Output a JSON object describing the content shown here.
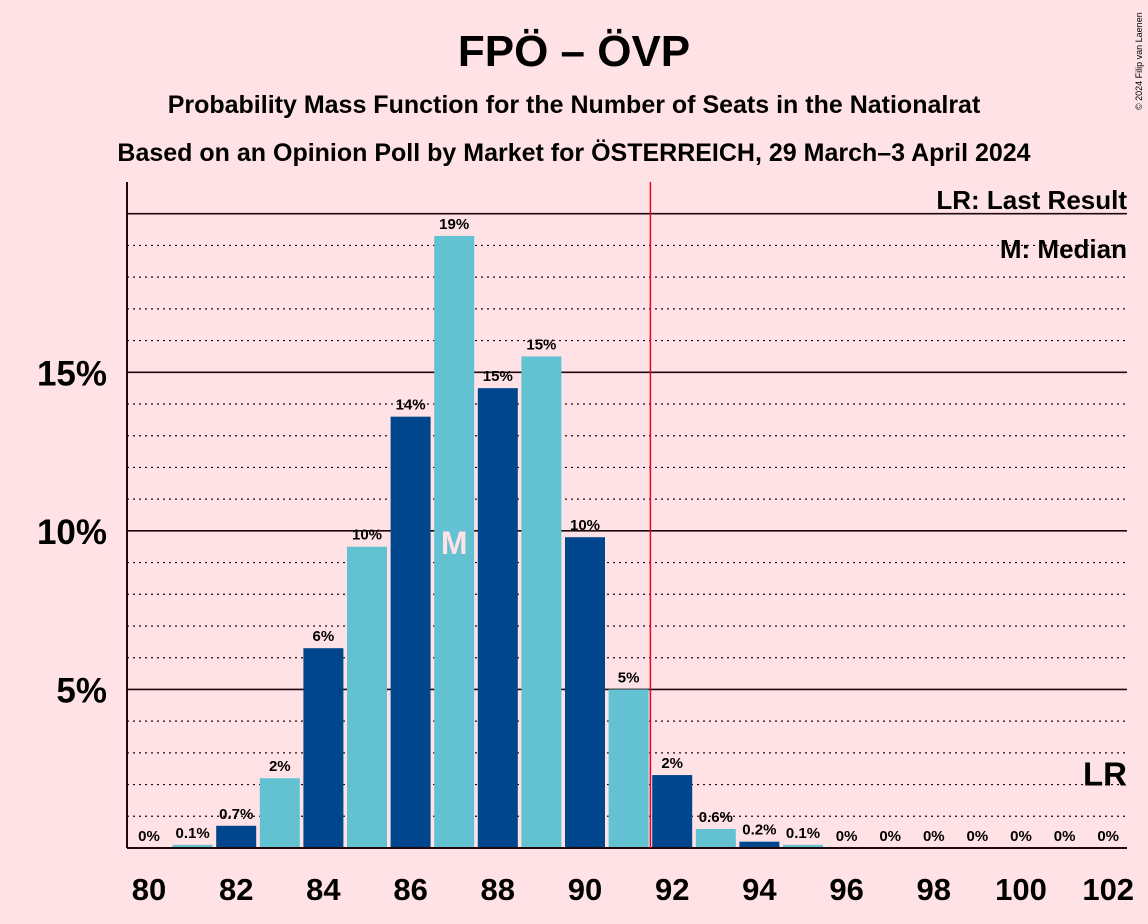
{
  "title": "FPÖ – ÖVP",
  "subtitle1": "Probability Mass Function for the Number of Seats in the Nationalrat",
  "subtitle2": "Based on an Opinion Poll by Market for ÖSTERREICH, 29 March–3 April 2024",
  "copyright": "© 2024 Filip van Laenen",
  "legend": {
    "last_result": "LR: Last Result",
    "median": "M: Median"
  },
  "markers": {
    "last_result_label": "LR",
    "median_label": "M",
    "majority_line_after_seat": 91.5,
    "median_seat": 87,
    "last_result_seat": 102
  },
  "colors": {
    "dark_bar": "#00468C",
    "light_bar": "#62C2D2",
    "background": "#FFE2E6",
    "majority_line": "#E8001E",
    "text": "#1E0A0E"
  },
  "chart_data": {
    "type": "bar",
    "x": [
      80,
      81,
      82,
      83,
      84,
      85,
      86,
      87,
      88,
      89,
      90,
      91,
      92,
      93,
      94,
      95,
      96,
      97,
      98,
      99,
      100,
      101,
      102
    ],
    "values": [
      0.0,
      0.1,
      0.7,
      2.2,
      6.3,
      9.5,
      13.6,
      19.3,
      14.5,
      15.5,
      9.8,
      5.0,
      2.3,
      0.6,
      0.2,
      0.1,
      0.0,
      0.0,
      0.0,
      0.0,
      0.0,
      0.0,
      0.0
    ],
    "labels": [
      "0%",
      "0.1%",
      "0.7%",
      "2%",
      "6%",
      "10%",
      "14%",
      "19%",
      "15%",
      "15%",
      "10%",
      "5%",
      "2%",
      "0.6%",
      "0.2%",
      "0.1%",
      "0%",
      "0%",
      "0%",
      "0%",
      "0%",
      "0%",
      "0%"
    ],
    "xticks": [
      "80",
      "82",
      "84",
      "86",
      "88",
      "90",
      "92",
      "94",
      "96",
      "98",
      "100",
      "102"
    ],
    "yticks": [
      "5%",
      "10%",
      "15%"
    ],
    "ylim": [
      0,
      21
    ],
    "grid": true
  }
}
